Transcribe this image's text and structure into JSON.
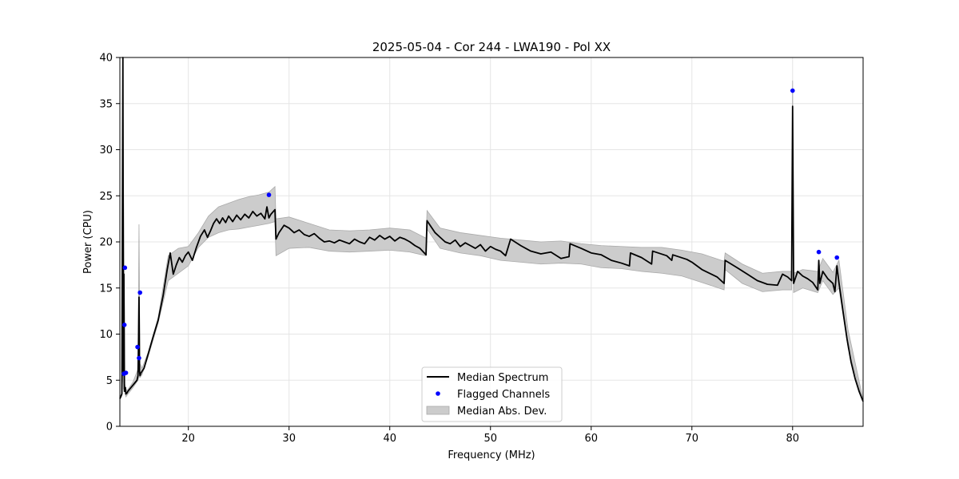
{
  "chart_data": {
    "type": "line",
    "title": "2025-05-04 - Cor 244 - LWA190 - Pol XX",
    "xlabel": "Frequency (MHz)",
    "ylabel": "Power (CPU)",
    "xlim": [
      13.2,
      87.0
    ],
    "ylim": [
      0,
      40
    ],
    "xticks": [
      20,
      30,
      40,
      50,
      60,
      70,
      80
    ],
    "yticks": [
      0,
      5,
      10,
      15,
      20,
      25,
      30,
      35,
      40
    ],
    "grid": true,
    "legend_position": "lower-center",
    "colors": {
      "median": "#000000",
      "flagged": "#0000ff",
      "mad_fill": "#cccccc",
      "mad_edge": "#aaaaaa",
      "grid": "#e5e5e5"
    },
    "series": [
      {
        "name": "Median Spectrum",
        "kind": "line",
        "x": [
          13.2,
          13.4,
          13.5,
          13.55,
          13.6,
          13.65,
          13.7,
          13.75,
          13.8,
          13.9,
          14.0,
          14.3,
          14.6,
          14.9,
          15.0,
          15.05,
          15.1,
          15.15,
          15.2,
          15.3,
          15.6,
          16.0,
          16.5,
          17.0,
          17.5,
          17.9,
          18.2,
          18.5,
          18.8,
          19.1,
          19.4,
          19.7,
          20.0,
          20.4,
          20.8,
          21.2,
          21.6,
          21.9,
          22.2,
          22.5,
          22.8,
          23.1,
          23.4,
          23.7,
          24.0,
          24.4,
          24.8,
          25.2,
          25.6,
          26.0,
          26.4,
          26.8,
          27.2,
          27.6,
          27.8,
          28.0,
          28.2,
          28.6,
          28.7,
          29.0,
          29.5,
          30.0,
          30.5,
          31.0,
          31.5,
          32.0,
          32.5,
          33.0,
          33.5,
          34.0,
          34.5,
          35.0,
          35.5,
          36.0,
          36.5,
          37.0,
          37.5,
          38.0,
          38.5,
          39.0,
          39.5,
          40.0,
          40.5,
          41.0,
          41.5,
          42.0,
          42.5,
          43.0,
          43.6,
          43.7,
          44.5,
          45.0,
          45.5,
          46.0,
          46.5,
          47.0,
          47.5,
          48.0,
          48.5,
          49.0,
          49.5,
          50.0,
          50.5,
          51.0,
          51.5,
          52.0,
          53.0,
          54.0,
          55.0,
          56.0,
          57.0,
          57.8,
          57.9,
          59.0,
          60.0,
          61.0,
          62.0,
          63.0,
          63.8,
          63.9,
          65.0,
          66.0,
          66.1,
          67.5,
          68.0,
          68.1,
          69.5,
          70.0,
          71.0,
          72.5,
          73.2,
          73.3,
          74.5,
          75.5,
          76.5,
          77.5,
          78.5,
          79.0,
          79.5,
          79.9,
          80.0,
          80.1,
          80.5,
          81.0,
          81.5,
          82.0,
          82.5,
          82.6,
          82.7,
          83.0,
          83.5,
          84.0,
          84.2,
          84.4,
          84.6,
          85.0,
          85.4,
          85.8,
          86.2,
          86.6,
          87.0
        ],
        "y": [
          3.0,
          3.5,
          40.0,
          6.0,
          16.5,
          3.8,
          4.0,
          4.2,
          3.5,
          3.6,
          3.8,
          4.2,
          4.6,
          5.0,
          5.5,
          9.0,
          14.0,
          6.0,
          5.5,
          5.8,
          6.3,
          7.8,
          9.7,
          11.5,
          14.2,
          17.0,
          18.8,
          16.5,
          17.5,
          18.3,
          17.8,
          18.5,
          18.9,
          18.0,
          19.4,
          20.6,
          21.3,
          20.5,
          21.2,
          22.0,
          22.5,
          22.0,
          22.6,
          22.1,
          22.8,
          22.2,
          22.9,
          22.4,
          23.0,
          22.6,
          23.3,
          22.8,
          23.1,
          22.5,
          23.8,
          22.6,
          23.0,
          23.5,
          20.3,
          21.0,
          21.8,
          21.5,
          21.0,
          21.3,
          20.8,
          20.6,
          20.9,
          20.4,
          20.0,
          20.1,
          19.9,
          20.2,
          20.0,
          19.8,
          20.3,
          20.0,
          19.8,
          20.5,
          20.2,
          20.7,
          20.3,
          20.6,
          20.1,
          20.5,
          20.3,
          20.0,
          19.6,
          19.3,
          18.6,
          22.3,
          21.0,
          20.5,
          20.0,
          19.8,
          20.2,
          19.5,
          19.9,
          19.6,
          19.3,
          19.7,
          19.0,
          19.5,
          19.2,
          19.0,
          18.5,
          20.3,
          19.6,
          19.0,
          18.7,
          18.9,
          18.2,
          18.4,
          19.8,
          19.3,
          18.8,
          18.6,
          18.0,
          17.7,
          17.4,
          18.8,
          18.3,
          17.6,
          19.0,
          18.5,
          18.0,
          18.6,
          18.1,
          17.8,
          17.0,
          16.2,
          15.5,
          18.0,
          17.2,
          16.5,
          15.8,
          15.4,
          15.3,
          16.5,
          16.2,
          15.8,
          34.7,
          15.5,
          16.8,
          16.3,
          16.0,
          15.6,
          14.8,
          18.0,
          15.5,
          16.8,
          16.0,
          15.5,
          14.6,
          17.4,
          15.6,
          12.5,
          9.5,
          7.0,
          5.2,
          3.8,
          2.7
        ]
      },
      {
        "name": "Flagged Channels",
        "kind": "scatter",
        "x": [
          13.6,
          13.65,
          13.7,
          13.8,
          14.95,
          15.1,
          15.2,
          28.0,
          80.0,
          82.6,
          84.4
        ],
        "y": [
          5.7,
          11.0,
          17.2,
          5.8,
          8.6,
          7.4,
          14.5,
          25.1,
          36.4,
          18.9,
          18.3
        ]
      },
      {
        "name": "Median Abs. Dev.",
        "kind": "band",
        "x": [
          13.2,
          13.4,
          13.5,
          13.55,
          13.6,
          13.7,
          13.8,
          14.0,
          14.5,
          15.0,
          15.1,
          15.2,
          15.4,
          16.0,
          17.0,
          18.0,
          19.0,
          20.0,
          21.0,
          22.0,
          23.0,
          24.0,
          25.0,
          26.0,
          27.0,
          28.0,
          28.6,
          28.7,
          30.0,
          32.0,
          34.0,
          36.0,
          38.0,
          40.0,
          42.0,
          43.6,
          43.7,
          45.0,
          47.0,
          49.0,
          51.0,
          53.0,
          55.0,
          57.0,
          59.0,
          61.0,
          63.0,
          65.0,
          67.0,
          69.0,
          71.0,
          73.2,
          73.3,
          75.0,
          77.0,
          79.0,
          79.9,
          80.0,
          80.1,
          81.0,
          82.5,
          83.0,
          84.0,
          84.6,
          85.5,
          87.0
        ],
        "upper": [
          3.1,
          3.7,
          40.0,
          28.0,
          22.0,
          4.6,
          3.9,
          4.0,
          4.8,
          6.2,
          21.9,
          6.8,
          6.3,
          8.0,
          11.8,
          18.5,
          19.3,
          19.5,
          21.0,
          22.8,
          23.8,
          24.2,
          24.6,
          24.9,
          25.1,
          25.4,
          26.0,
          22.5,
          22.7,
          22.0,
          21.3,
          21.2,
          21.3,
          21.5,
          21.3,
          20.4,
          23.4,
          21.5,
          21.0,
          20.7,
          20.4,
          20.2,
          20.0,
          20.1,
          19.8,
          19.6,
          19.5,
          19.4,
          19.4,
          19.1,
          18.7,
          17.9,
          18.8,
          17.6,
          16.6,
          16.8,
          16.8,
          37.5,
          16.6,
          17.0,
          16.8,
          18.2,
          16.7,
          18.0,
          10.5,
          2.9
        ],
        "lower": [
          2.9,
          3.3,
          6.0,
          4.0,
          10.0,
          3.6,
          3.2,
          3.5,
          4.2,
          5.0,
          5.4,
          5.3,
          5.6,
          7.5,
          11.2,
          15.8,
          16.6,
          17.4,
          19.4,
          20.5,
          21.0,
          21.3,
          21.4,
          21.6,
          21.8,
          22.0,
          22.2,
          18.5,
          19.3,
          19.4,
          19.0,
          18.9,
          19.0,
          19.1,
          18.9,
          18.5,
          21.4,
          19.3,
          18.8,
          18.5,
          18.0,
          17.8,
          17.6,
          17.7,
          17.6,
          17.2,
          17.1,
          16.8,
          16.6,
          16.3,
          15.6,
          14.8,
          17.0,
          15.5,
          14.6,
          14.8,
          14.8,
          32.0,
          14.5,
          15.0,
          14.5,
          15.8,
          14.3,
          15.0,
          8.5,
          2.6
        ]
      }
    ]
  }
}
